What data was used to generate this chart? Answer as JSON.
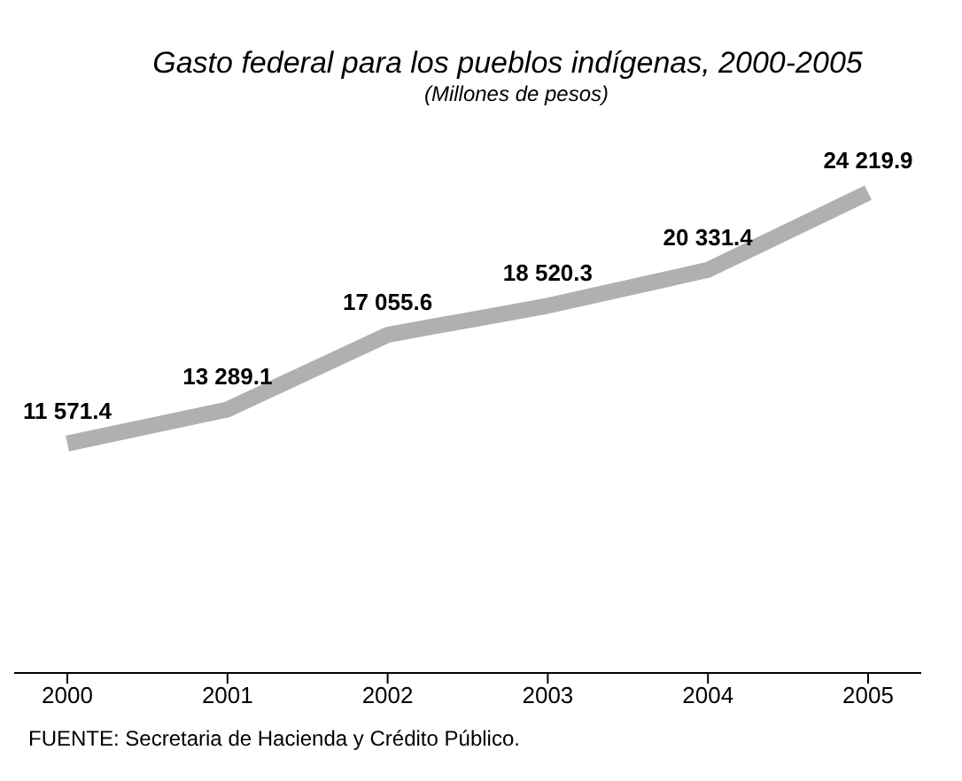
{
  "chart_data": {
    "type": "area",
    "title": "Gasto federal para los pueblos indígenas, 2000-2005",
    "subtitle": "(Millones de pesos)",
    "categories": [
      "2000",
      "2001",
      "2002",
      "2003",
      "2004",
      "2005"
    ],
    "series": [
      {
        "color": "#b0b0b0",
        "values": [
          11571.4,
          13289.1,
          17055.6,
          18520.3,
          20331.4,
          24219.9
        ],
        "value_labels": [
          "11 571.4",
          "13 289.1",
          "17 055.6",
          "18 520.3",
          "20 331.4",
          "24 219.9"
        ]
      }
    ],
    "annotations": [
      "FUENTE: Secretaria de Hacienda y Crédito Público."
    ]
  }
}
